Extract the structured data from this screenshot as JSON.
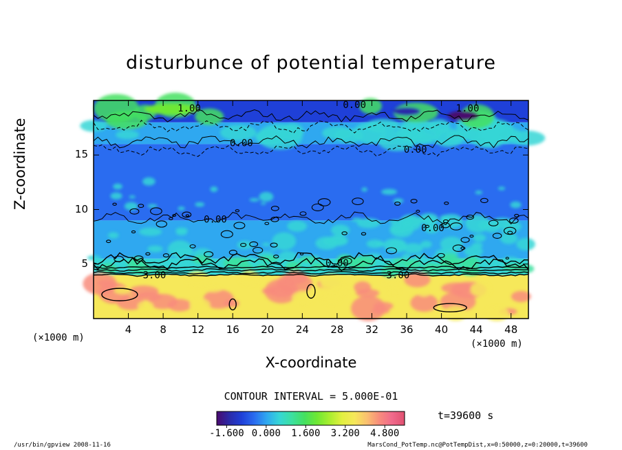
{
  "chart_data": {
    "type": "heatmap",
    "title": "disturbunce of potential temperature",
    "xlabel": "X-coordinate",
    "ylabel": "Z-coordinate",
    "x_unit_left": "(×1000 m)",
    "x_unit_right": "(×1000 m)",
    "xlim": [
      0,
      50
    ],
    "ylim": [
      0,
      20
    ],
    "x_ticks": [
      4,
      8,
      12,
      16,
      20,
      24,
      28,
      32,
      36,
      40,
      44,
      48
    ],
    "x_tick_labels": [
      "4",
      "8",
      "12",
      "16",
      "20",
      "24",
      "28",
      "32",
      "36",
      "40",
      "44",
      "48"
    ],
    "y_ticks": [
      5,
      10,
      15
    ],
    "y_tick_labels": [
      "5",
      "10",
      "15"
    ],
    "contour_interval_text": "CONTOUR INTERVAL = 5.000E-01",
    "contour_labels": [
      {
        "text": "1.00",
        "x": 11,
        "z": 19.0
      },
      {
        "text": "0.00",
        "x": 30,
        "z": 19.3
      },
      {
        "text": "1.00",
        "x": 43,
        "z": 19.0
      },
      {
        "text": "0.00",
        "x": 17,
        "z": 15.8
      },
      {
        "text": "0.00",
        "x": 37,
        "z": 15.2
      },
      {
        "text": "0.00",
        "x": 14,
        "z": 8.8
      },
      {
        "text": "0.00",
        "x": 39,
        "z": 8.0
      },
      {
        "text": "0.00",
        "x": 28,
        "z": 4.8
      },
      {
        "text": "3.00",
        "x": 7,
        "z": 3.7
      },
      {
        "text": "3.00",
        "x": 35,
        "z": 3.7
      }
    ],
    "colorbar": {
      "range": [
        -2.0,
        5.6
      ],
      "tick_values": [
        -1.6,
        0.0,
        1.6,
        3.2,
        4.8
      ],
      "tick_labels": [
        "-1.600",
        "0.000",
        "1.600",
        "3.200",
        "4.800"
      ],
      "colors": [
        "#4a0a6e",
        "#2b2ba8",
        "#1f40d8",
        "#2a6cf0",
        "#2fa8f0",
        "#36d6d6",
        "#3ce0a0",
        "#44e060",
        "#6ee834",
        "#a8ee30",
        "#e2f040",
        "#f6e85a",
        "#fac070",
        "#f88c7c",
        "#f06a8c",
        "#e05070"
      ]
    },
    "field_levels": [
      {
        "z_from": 0.0,
        "z_to": 4.0,
        "value": 3.6,
        "label": "warm lower layer"
      },
      {
        "z_from": 4.0,
        "z_to": 5.5,
        "value": 0.6,
        "label": "transition band"
      },
      {
        "z_from": 5.5,
        "z_to": 9.0,
        "value": 0.2,
        "label": "mid layer with cyan patches"
      },
      {
        "z_from": 9.0,
        "z_to": 16.0,
        "value": -0.5,
        "label": "uniform blue"
      },
      {
        "z_from": 16.0,
        "z_to": 18.0,
        "value": 0.3,
        "label": "upper cyan band"
      },
      {
        "z_from": 18.0,
        "z_to": 20.0,
        "value": -0.8,
        "label": "top layer"
      }
    ],
    "time_label": "t=39600 s"
  },
  "footer": {
    "left": "/usr/bin/gpview   2008-11-16",
    "right": "MarsCond_PotTemp.nc@PotTempDist,x=0:50000,z=0:20000,t=39600"
  },
  "colors": {
    "background": "#ffffff",
    "lower_layer": "#e4f040",
    "mid_blue": "#1e50e0",
    "cyan": "#33cfe0",
    "green": "#48d858"
  }
}
